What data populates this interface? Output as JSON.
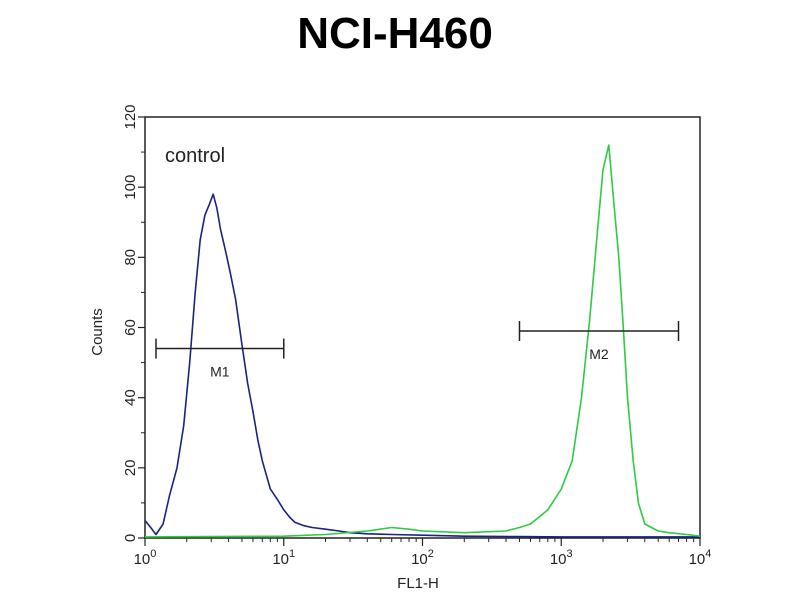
{
  "chart_data": {
    "type": "line",
    "title": "NCI-H460",
    "xlabel": "FL1-H",
    "ylabel": "Counts",
    "x_scale": "log",
    "xlim": [
      1,
      10000
    ],
    "ylim": [
      0,
      120
    ],
    "x_ticks": [
      {
        "value": 1,
        "base": "10",
        "exp": "0"
      },
      {
        "value": 10,
        "base": "10",
        "exp": "1"
      },
      {
        "value": 100,
        "base": "10",
        "exp": "2"
      },
      {
        "value": 1000,
        "base": "10",
        "exp": "3"
      },
      {
        "value": 10000,
        "base": "10",
        "exp": "4"
      }
    ],
    "y_ticks": [
      0,
      20,
      40,
      60,
      80,
      100,
      120
    ],
    "annotation": "control",
    "series": [
      {
        "name": "control",
        "color": "#1a237e",
        "x": [
          1.0,
          1.1,
          1.2,
          1.35,
          1.5,
          1.7,
          1.9,
          2.1,
          2.3,
          2.5,
          2.7,
          2.9,
          3.1,
          3.3,
          3.5,
          3.8,
          4.1,
          4.5,
          5.0,
          5.5,
          6.0,
          6.5,
          7.0,
          8.0,
          9.0,
          10.0,
          11.0,
          12.0,
          14.0,
          16.0,
          20.0,
          25.0,
          30.0,
          40.0,
          60.0,
          100.0,
          200.0,
          500.0,
          1000.0,
          3000.0,
          10000.0
        ],
        "y": [
          5,
          3,
          1,
          4,
          12,
          20,
          32,
          50,
          70,
          85,
          92,
          95,
          98,
          94,
          88,
          82,
          76,
          68,
          55,
          44,
          36,
          28,
          22,
          14,
          11,
          8,
          6,
          4.5,
          3.5,
          3,
          2.5,
          2,
          1.5,
          1.2,
          1,
          0.8,
          0.5,
          0.4,
          0.3,
          0.3,
          0.3
        ]
      },
      {
        "name": "",
        "color": "#2ecc40",
        "x": [
          1.0,
          10.0,
          20.0,
          40.0,
          60.0,
          80.0,
          100.0,
          200.0,
          400.0,
          500.0,
          600.0,
          800.0,
          1000.0,
          1200.0,
          1400.0,
          1600.0,
          1800.0,
          2000.0,
          2200.0,
          2400.0,
          2600.0,
          2800.0,
          3000.0,
          3300.0,
          3600.0,
          4000.0,
          5000.0,
          6000.0,
          8000.0,
          10000.0
        ],
        "y": [
          0.3,
          0.5,
          1,
          2,
          3,
          2.5,
          2,
          1.5,
          2,
          3,
          4,
          8,
          14,
          22,
          40,
          62,
          85,
          105,
          112,
          95,
          80,
          60,
          40,
          22,
          10,
          4,
          2,
          1.5,
          1,
          0.5
        ]
      }
    ],
    "gates": [
      {
        "label": "M1",
        "x_start": 1.2,
        "x_end": 10.0,
        "y": 54,
        "color": "#222222"
      },
      {
        "label": "M2",
        "x_start": 500.0,
        "x_end": 7000.0,
        "y": 59,
        "color": "#222222"
      }
    ]
  }
}
